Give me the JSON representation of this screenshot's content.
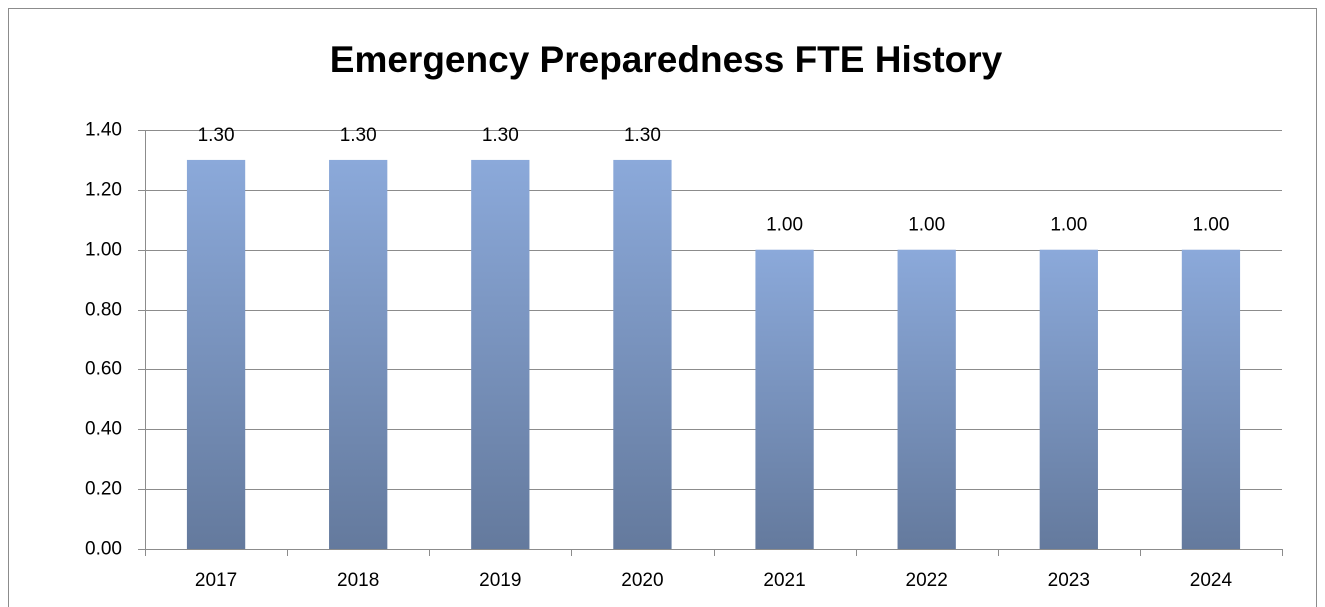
{
  "chart_data": {
    "type": "bar",
    "title": "Emergency Preparedness FTE History",
    "categories": [
      "2017",
      "2018",
      "2019",
      "2020",
      "2021",
      "2022",
      "2023",
      "2024"
    ],
    "values": [
      1.3,
      1.3,
      1.3,
      1.3,
      1,
      1,
      1,
      1
    ],
    "value_labels": [
      "1.30",
      "1.30",
      "1.30",
      "1.30",
      "1.00",
      "1.00",
      "1.00",
      "1.00"
    ],
    "color": "#8ba9da",
    "ylim": [
      0,
      1.4
    ],
    "yticks": [
      {
        "value": 0,
        "label": "0.00"
      },
      {
        "value": 0.2,
        "label": "0.20"
      },
      {
        "value": 0.4,
        "label": "0.40"
      },
      {
        "value": 0.6,
        "label": "0.60"
      },
      {
        "value": 0.8,
        "label": "0.80"
      },
      {
        "value": 1,
        "label": "1.00"
      },
      {
        "value": 1.2,
        "label": "1.20"
      },
      {
        "value": 1.4,
        "label": "1.40"
      }
    ],
    "grid": true
  }
}
